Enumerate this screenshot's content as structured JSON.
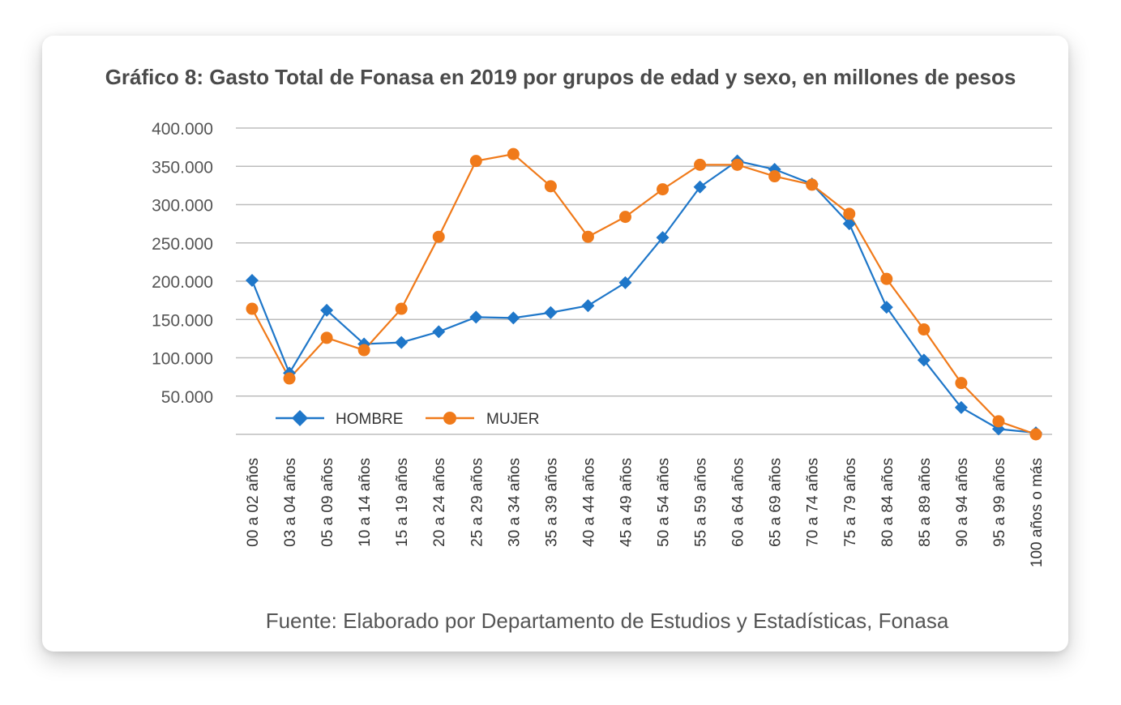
{
  "chart_data": {
    "type": "line",
    "title": "Gráfico 8: Gasto Total de Fonasa en 2019 por grupos de edad y sexo, en millones de pesos",
    "source": "Fuente: Elaborado por Departamento de Estudios y Estadísticas, Fonasa",
    "categories": [
      "00 a 02 años",
      "03 a 04 años",
      "05 a 09 años",
      "10 a 14 años",
      "15 a 19 años",
      "20 a 24 años",
      "25 a 29 años",
      "30 a 34 años",
      "35 a 39 años",
      "40 a 44 años",
      "45 a 49 años",
      "50 a 54 años",
      "55 a 59 años",
      "60 a 64 años",
      "65 a 69 años",
      "70 a 74 años",
      "75 a 79 años",
      "80 a 84 años",
      "85 a 89 años",
      "90 a 94 años",
      "95 a 99 años",
      "100 años o más"
    ],
    "y_ticks": [
      "50.000",
      "100.000",
      "150.000",
      "200.000",
      "250.000",
      "300.000",
      "350.000",
      "400.000"
    ],
    "ylim": [
      0,
      400000
    ],
    "grid": true,
    "legend_position": "bottom-left inside plot",
    "series": [
      {
        "name": "HOMBRE",
        "color": "#1f77c9",
        "marker": "diamond",
        "values": [
          201000,
          80000,
          162000,
          118000,
          120000,
          134000,
          153000,
          152000,
          159000,
          168000,
          198000,
          257000,
          323000,
          357000,
          346000,
          327000,
          275000,
          166000,
          97000,
          35000,
          7000,
          2000
        ]
      },
      {
        "name": "MUJER",
        "color": "#f07a1a",
        "marker": "circle",
        "values": [
          164000,
          73000,
          126000,
          110000,
          164000,
          258000,
          357000,
          366000,
          324000,
          258000,
          284000,
          320000,
          352000,
          352000,
          337000,
          326000,
          288000,
          203000,
          137000,
          67000,
          17000,
          0
        ]
      }
    ]
  }
}
